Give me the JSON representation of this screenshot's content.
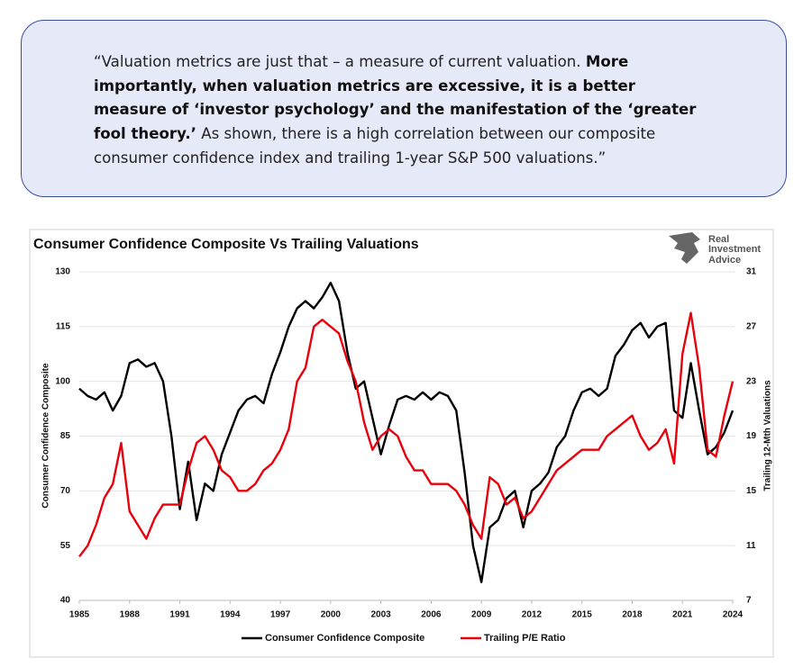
{
  "quote": {
    "segments": [
      {
        "text": "“Valuation metrics are just that – a measure of current valuation. ",
        "bold": false
      },
      {
        "text": "More importantly, when valuation metrics are excessive, it is a better measure of ‘investor psychology’ and the manifestation of the ‘greater fool theory.’",
        "bold": true
      },
      {
        "text": " As shown, there is a high correlation between our composite consumer confidence index and trailing 1-year S&P 500 valuations.”",
        "bold": false
      }
    ]
  },
  "logo": {
    "lines": [
      "Real",
      "Investment",
      "Advice"
    ]
  },
  "chart_data": {
    "type": "line",
    "title": "Consumer Confidence Composite Vs Trailing Valuations",
    "y_label": "Consumer Confidence Composite",
    "y2_label": "Trailing 12-Mth Valuations",
    "xlim": [
      1985,
      2024
    ],
    "xticks": [
      1985,
      1988,
      1991,
      1994,
      1997,
      2000,
      2003,
      2006,
      2009,
      2012,
      2015,
      2018,
      2021,
      2024
    ],
    "ylim": [
      40,
      130
    ],
    "yticks": [
      40,
      55,
      70,
      85,
      100,
      115,
      130
    ],
    "y2lim": [
      7,
      31
    ],
    "y2ticks": [
      7,
      11,
      15,
      19,
      23,
      27,
      31
    ],
    "grid": true,
    "legend": "bottom",
    "x": [
      1985,
      1985.5,
      1986,
      1986.5,
      1987,
      1987.5,
      1988,
      1988.5,
      1989,
      1989.5,
      1990,
      1990.5,
      1991,
      1991.5,
      1992,
      1992.5,
      1993,
      1993.5,
      1994,
      1994.5,
      1995,
      1995.5,
      1996,
      1996.5,
      1997,
      1997.5,
      1998,
      1998.5,
      1999,
      1999.5,
      2000,
      2000.5,
      2001,
      2001.5,
      2002,
      2002.5,
      2003,
      2003.5,
      2004,
      2004.5,
      2005,
      2005.5,
      2006,
      2006.5,
      2007,
      2007.5,
      2008,
      2008.5,
      2009,
      2009.5,
      2010,
      2010.5,
      2011,
      2011.5,
      2012,
      2012.5,
      2013,
      2013.5,
      2014,
      2014.5,
      2015,
      2015.5,
      2016,
      2016.5,
      2017,
      2017.5,
      2018,
      2018.5,
      2019,
      2019.5,
      2020,
      2020.5,
      2021,
      2021.5,
      2022,
      2022.5,
      2023,
      2023.5,
      2024
    ],
    "series": [
      {
        "name": "Consumer Confidence Composite",
        "color": "#000000",
        "axis": "y",
        "values": [
          98,
          96,
          95,
          97,
          92,
          96,
          105,
          106,
          104,
          105,
          100,
          85,
          65,
          78,
          62,
          72,
          70,
          80,
          86,
          92,
          95,
          96,
          94,
          102,
          108,
          115,
          120,
          122,
          120,
          123,
          127,
          122,
          108,
          98,
          100,
          90,
          80,
          88,
          95,
          96,
          95,
          97,
          95,
          97,
          96,
          92,
          75,
          55,
          45,
          60,
          62,
          68,
          70,
          60,
          70,
          72,
          75,
          82,
          85,
          92,
          97,
          98,
          96,
          98,
          107,
          110,
          114,
          116,
          112,
          115,
          116,
          92,
          90,
          105,
          92,
          80,
          82,
          86,
          92
        ]
      },
      {
        "name": "Trailing P/E Ratio",
        "color": "#e8000b",
        "axis": "y2",
        "values": [
          10.2,
          11,
          12.5,
          14.5,
          15.5,
          18.5,
          13.5,
          12.5,
          11.5,
          13,
          14,
          14,
          14,
          16.5,
          18.5,
          19,
          18,
          16.5,
          16,
          15,
          15,
          15.5,
          16.5,
          17,
          18,
          19.5,
          23,
          24,
          27,
          27.5,
          27,
          26.5,
          24.5,
          23,
          20,
          18,
          19,
          19.5,
          19,
          17.5,
          16.5,
          16.5,
          15.5,
          15.5,
          15.5,
          15,
          14,
          12.5,
          11.5,
          16,
          15.5,
          14,
          14.5,
          13,
          13.5,
          14.5,
          15.5,
          16.5,
          17,
          17.5,
          18,
          18,
          18,
          19,
          19.5,
          20,
          20.5,
          19,
          18,
          18.5,
          19.5,
          17,
          25,
          28,
          24,
          18,
          17.5,
          20.5,
          23
        ]
      }
    ]
  }
}
